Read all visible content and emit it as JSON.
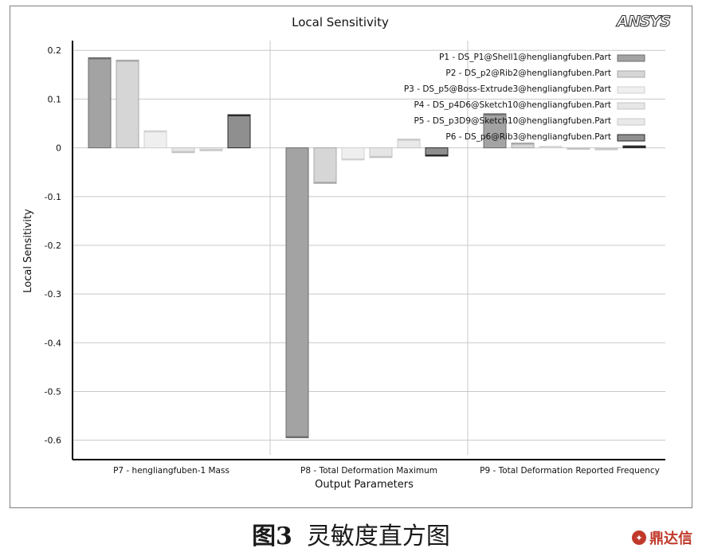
{
  "chart_data": {
    "type": "bar",
    "title": "Local Sensitivity",
    "brand": "ANSYS",
    "xlabel": "Output Parameters",
    "ylabel": "Local Sensitivity",
    "ylim": [
      -0.63,
      0.22
    ],
    "yticks": [
      0.2,
      0.1,
      0,
      -0.1,
      -0.2,
      -0.3,
      -0.4,
      -0.5,
      -0.6
    ],
    "ytick_labels": [
      "0.2",
      "0.1",
      "0",
      "-0.1",
      "-0.2",
      "-0.3",
      "-0.4",
      "-0.5",
      "-0.6"
    ],
    "grid": true,
    "legend_position": "top-right",
    "categories": [
      "P7 - hengliangfuben-1 Mass",
      "P8 - Total Deformation Maximum",
      "P9 - Total Deformation Reported Frequency"
    ],
    "series": [
      {
        "name": "P1 - DS_P1@Shell1@hengliangfuben.Part",
        "color": "#a3a3a3",
        "edge": "#6e6e6e",
        "values": [
          0.185,
          -0.595,
          0.07
        ]
      },
      {
        "name": "P2 - DS_p2@Rib2@hengliangfuben.Part",
        "color": "#d6d6d6",
        "edge": "#a8a8a8",
        "values": [
          0.18,
          -0.073,
          0.01
        ]
      },
      {
        "name": "P3 - DS_p5@Boss-Extrude3@hengliangfuben.Part",
        "color": "#efefef",
        "edge": "#d2d2d2",
        "values": [
          0.035,
          -0.025,
          0.003
        ]
      },
      {
        "name": "P4 - DS_p4D6@Sketch10@hengliangfuben.Part",
        "color": "#e6e6e6",
        "edge": "#c4c4c4",
        "values": [
          -0.01,
          -0.02,
          -0.003
        ]
      },
      {
        "name": "P5 - DS_p3D9@Sketch10@hengliangfuben.Part",
        "color": "#e9e9e9",
        "edge": "#c8c8c8",
        "values": [
          -0.006,
          0.018,
          -0.004
        ]
      },
      {
        "name": "P6 - DS_p6@Rib3@hengliangfuben.Part",
        "color": "#8f8f8f",
        "edge": "#2a2a2a",
        "values": [
          0.068,
          -0.017,
          0.004
        ]
      }
    ]
  },
  "caption": {
    "number": "图3",
    "text": "灵敏度直方图"
  },
  "watermark": {
    "text": "鼎达信"
  }
}
